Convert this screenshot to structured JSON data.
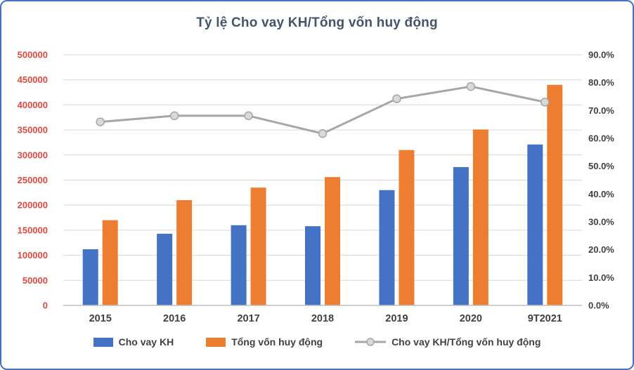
{
  "frame": {
    "border_color": "#4472C4",
    "background": "#FFFFFF"
  },
  "chart_data": {
    "type": "combo",
    "title": "Tỷ lệ Cho vay KH/Tổng vốn huy động",
    "title_color": "#44546A",
    "categories": [
      "2015",
      "2016",
      "2017",
      "2018",
      "2019",
      "2020",
      "9T2021"
    ],
    "series": [
      {
        "name": "Cho vay KH",
        "type": "bar",
        "axis": "left",
        "color": "#4472C4",
        "values": [
          112000,
          143000,
          160000,
          158000,
          230000,
          276000,
          321000
        ]
      },
      {
        "name": "Tổng vốn huy động",
        "type": "bar",
        "axis": "left",
        "color": "#ED7D31",
        "values": [
          170000,
          210000,
          235000,
          256000,
          310000,
          351000,
          440000
        ]
      },
      {
        "name": "Cho vay KH/Tổng vốn huy động",
        "type": "line",
        "axis": "right",
        "color": "#A6A6A6",
        "marker_fill": "#D9D9D9",
        "values": [
          0.659,
          0.681,
          0.681,
          0.617,
          0.742,
          0.786,
          0.73
        ]
      }
    ],
    "left_axis": {
      "min": 0,
      "max": 500000,
      "step": 50000,
      "label_color": "#E0483E"
    },
    "right_axis": {
      "min": 0,
      "max": 0.9,
      "step": 0.1,
      "format": "percent",
      "label_color": "#404040"
    },
    "x_label_color": "#404040",
    "gridline_color": "#D9D9D9",
    "axis_line_color": "#BFBFBF",
    "grid": true,
    "legend_position": "bottom"
  }
}
